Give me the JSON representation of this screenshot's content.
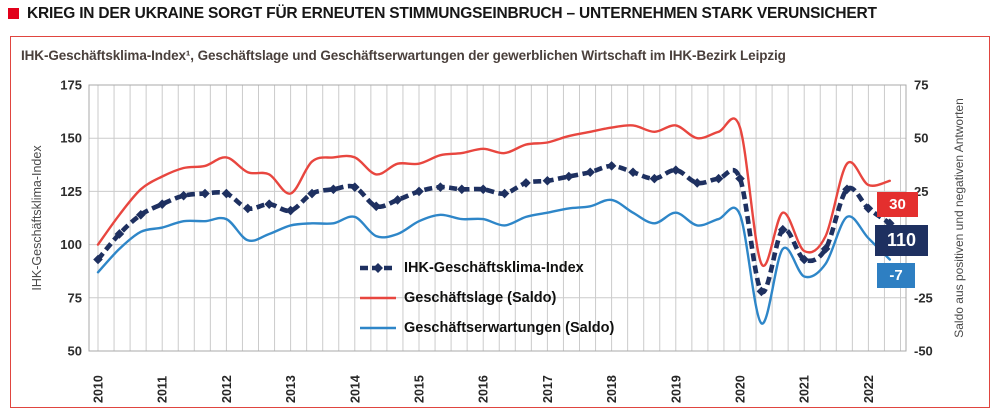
{
  "header": {
    "title": "KRIEG IN DER UKRAINE SORGT FÜR ERNEUTEN STIMMUNGSEINBRUCH – UNTERNEHMEN STARK VERUNSICHERT",
    "bullet_color": "#e2001a"
  },
  "panel": {
    "title": "IHK-Geschäftsklima-Index¹, Geschäftslage und Geschäftserwartungen der gewerblichen Wirtschaft im IHK-Bezirk Leipzig",
    "border_color": "#e0453f"
  },
  "chart_data": {
    "type": "line",
    "title": "IHK-Geschäftsklima-Index, Geschäftslage und Geschäftserwartungen der gewerblichen Wirtschaft im IHK-Bezirk Leipzig",
    "x_years": [
      2010,
      2011,
      2012,
      2013,
      2014,
      2015,
      2016,
      2017,
      2018,
      2019,
      2020,
      2021,
      2022
    ],
    "points_per_year": 3,
    "grid": "on",
    "left_axis": {
      "label": "IHK-Geschäftsklima-Index",
      "ticks": [
        175,
        150,
        125,
        100,
        75,
        50
      ],
      "range": [
        50,
        175
      ]
    },
    "right_axis": {
      "label": "Saldo aus positiven und negativen Antworten",
      "ticks": [
        75,
        50,
        25,
        0,
        -25,
        -50
      ],
      "range": [
        -50,
        75
      ]
    },
    "series": [
      {
        "name": "IHK-Geschäftsklima-Index",
        "axis": "left",
        "color": "#1e3060",
        "style": "dashed-diamond",
        "values": [
          93,
          105,
          114,
          119,
          123,
          124,
          124,
          117,
          119,
          116,
          124,
          126,
          127,
          118,
          121,
          125,
          127,
          126,
          126,
          124,
          129,
          130,
          132,
          134,
          137,
          134,
          131,
          135,
          129,
          131,
          131,
          78,
          107,
          93,
          98,
          126,
          117,
          110
        ]
      },
      {
        "name": "Geschäftslage (Saldo)",
        "axis": "right",
        "color": "#e8463f",
        "style": "solid",
        "values": [
          0,
          14,
          26,
          32,
          36,
          37,
          41,
          34,
          33,
          24,
          39,
          41,
          41,
          33,
          38,
          38,
          42,
          43,
          45,
          43,
          47,
          48,
          51,
          53,
          55,
          56,
          53,
          56,
          50,
          53,
          55,
          -9,
          15,
          -3,
          4,
          38,
          28,
          30
        ]
      },
      {
        "name": "Geschäftserwartungen (Saldo)",
        "axis": "right",
        "color": "#2e86c8",
        "style": "solid",
        "values": [
          -13,
          -2,
          6,
          8,
          11,
          11,
          12,
          2,
          5,
          9,
          10,
          10,
          13,
          4,
          5,
          11,
          14,
          12,
          12,
          9,
          13,
          15,
          17,
          18,
          21,
          15,
          10,
          15,
          9,
          12,
          14,
          -37,
          -2,
          -15,
          -9,
          13,
          3,
          -7
        ]
      }
    ],
    "end_labels": [
      {
        "text": "30",
        "series": "Geschäftslage (Saldo)",
        "color": "#e42f2e"
      },
      {
        "text": "110",
        "series": "IHK-Geschäftsklima-Index",
        "color": "#1e3060"
      },
      {
        "text": "-7",
        "series": "Geschäftserwartungen (Saldo)",
        "color": "#2e7fc2"
      }
    ],
    "legend_position": "inside-center"
  },
  "legend": {
    "items": [
      {
        "label": "IHK-Geschäftsklima-Index"
      },
      {
        "label": "Geschäftslage (Saldo)"
      },
      {
        "label": "Geschäftserwartungen (Saldo)"
      }
    ]
  }
}
